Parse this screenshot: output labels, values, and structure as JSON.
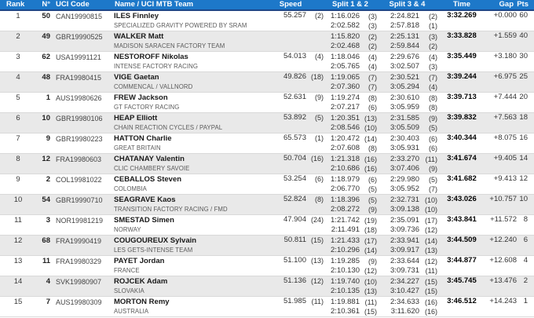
{
  "colors": {
    "header_bg": "#1d78c9",
    "header_border": "#1e4687",
    "header_text": "#ffffff",
    "row_alt_bg": "#e9e9e9",
    "row_border": "#d9d9d9",
    "text": "#333333"
  },
  "table": {
    "headers": {
      "rank": "Rank",
      "number": "N°",
      "uci_code": "UCI Code",
      "name_team": "Name / UCI MTB Team",
      "speed": "Speed",
      "split12": "Split 1 & 2",
      "split34": "Split 3 & 4",
      "time": "Time",
      "gap": "Gap",
      "pts": "Pts"
    },
    "rows": [
      {
        "rank": "1",
        "number": "50",
        "uci": "CAN19990815",
        "name": "ILES Finnley",
        "team": "SPECIALIZED GRAVITY POWERED BY SRAM",
        "speed": "55.257",
        "speed_rank": "(2)",
        "split1": "1:16.026",
        "split1_rank": "(3)",
        "split2": "2:02.582",
        "split2_rank": "(3)",
        "split3": "2:24.821",
        "split3_rank": "(2)",
        "split4": "2:57.818",
        "split4_rank": "(1)",
        "time": "3:32.269",
        "gap": "+0.000",
        "pts": "60"
      },
      {
        "rank": "2",
        "number": "49",
        "uci": "GBR19990525",
        "name": "WALKER Matt",
        "team": "MADISON SARACEN FACTORY TEAM",
        "speed": "",
        "speed_rank": "",
        "split1": "1:15.820",
        "split1_rank": "(2)",
        "split2": "2:02.468",
        "split2_rank": "(2)",
        "split3": "2:25.131",
        "split3_rank": "(3)",
        "split4": "2:59.844",
        "split4_rank": "(2)",
        "time": "3:33.828",
        "gap": "+1.559",
        "pts": "40"
      },
      {
        "rank": "3",
        "number": "62",
        "uci": "USA19991121",
        "name": "NESTOROFF Nikolas",
        "team": "INTENSE FACTORY RACING",
        "speed": "54.013",
        "speed_rank": "(4)",
        "split1": "1:18.046",
        "split1_rank": "(4)",
        "split2": "2:05.765",
        "split2_rank": "(4)",
        "split3": "2:29.676",
        "split3_rank": "(4)",
        "split4": "3:02.507",
        "split4_rank": "(3)",
        "time": "3:35.449",
        "gap": "+3.180",
        "pts": "30"
      },
      {
        "rank": "4",
        "number": "48",
        "uci": "FRA19980415",
        "name": "VIGE Gaetan",
        "team": "COMMENCAL / VALLNORD",
        "speed": "49.826",
        "speed_rank": "(18)",
        "split1": "1:19.065",
        "split1_rank": "(7)",
        "split2": "2:07.360",
        "split2_rank": "(7)",
        "split3": "2:30.521",
        "split3_rank": "(7)",
        "split4": "3:05.294",
        "split4_rank": "(4)",
        "time": "3:39.244",
        "gap": "+6.975",
        "pts": "25"
      },
      {
        "rank": "5",
        "number": "1",
        "uci": "AUS19980626",
        "name": "FREW Jackson",
        "team": "GT FACTORY RACING",
        "speed": "52.631",
        "speed_rank": "(9)",
        "split1": "1:19.274",
        "split1_rank": "(8)",
        "split2": "2:07.217",
        "split2_rank": "(6)",
        "split3": "2:30.610",
        "split3_rank": "(8)",
        "split4": "3:05.959",
        "split4_rank": "(8)",
        "time": "3:39.713",
        "gap": "+7.444",
        "pts": "20"
      },
      {
        "rank": "6",
        "number": "10",
        "uci": "GBR19980106",
        "name": "HEAP Elliott",
        "team": "CHAIN REACTION CYCLES / PAYPAL",
        "speed": "53.892",
        "speed_rank": "(5)",
        "split1": "1:20.351",
        "split1_rank": "(13)",
        "split2": "2:08.546",
        "split2_rank": "(10)",
        "split3": "2:31.585",
        "split3_rank": "(9)",
        "split4": "3:05.509",
        "split4_rank": "(5)",
        "time": "3:39.832",
        "gap": "+7.563",
        "pts": "18"
      },
      {
        "rank": "7",
        "number": "9",
        "uci": "GBR19980223",
        "name": "HATTON Charlie",
        "team": "GREAT BRITAIN",
        "speed": "65.573",
        "speed_rank": "(1)",
        "split1": "1:20.472",
        "split1_rank": "(14)",
        "split2": "2:07.608",
        "split2_rank": "(8)",
        "split3": "2:30.403",
        "split3_rank": "(6)",
        "split4": "3:05.931",
        "split4_rank": "(6)",
        "time": "3:40.344",
        "gap": "+8.075",
        "pts": "16"
      },
      {
        "rank": "8",
        "number": "12",
        "uci": "FRA19980603",
        "name": "CHATANAY Valentin",
        "team": "CLIC CHAMBERY SAVOIE",
        "speed": "50.704",
        "speed_rank": "(16)",
        "split1": "1:21.318",
        "split1_rank": "(16)",
        "split2": "2:10.686",
        "split2_rank": "(16)",
        "split3": "2:33.270",
        "split3_rank": "(11)",
        "split4": "3:07.406",
        "split4_rank": "(9)",
        "time": "3:41.674",
        "gap": "+9.405",
        "pts": "14"
      },
      {
        "rank": "9",
        "number": "2",
        "uci": "COL19981022",
        "name": "CEBALLOS Steven",
        "team": "COLOMBIA",
        "speed": "53.254",
        "speed_rank": "(6)",
        "split1": "1:18.979",
        "split1_rank": "(6)",
        "split2": "2:06.770",
        "split2_rank": "(5)",
        "split3": "2:29.980",
        "split3_rank": "(5)",
        "split4": "3:05.952",
        "split4_rank": "(7)",
        "time": "3:41.682",
        "gap": "+9.413",
        "pts": "12"
      },
      {
        "rank": "10",
        "number": "54",
        "uci": "GBR19990710",
        "name": "SEAGRAVE Kaos",
        "team": "TRANSITION FACTORY RACING / FMD",
        "speed": "52.824",
        "speed_rank": "(8)",
        "split1": "1:18.396",
        "split1_rank": "(5)",
        "split2": "2:08.272",
        "split2_rank": "(9)",
        "split3": "2:32.731",
        "split3_rank": "(10)",
        "split4": "3:09.138",
        "split4_rank": "(10)",
        "time": "3:43.026",
        "gap": "+10.757",
        "pts": "10"
      },
      {
        "rank": "11",
        "number": "3",
        "uci": "NOR19981219",
        "name": "SMESTAD Simen",
        "team": "NORWAY",
        "speed": "47.904",
        "speed_rank": "(24)",
        "split1": "1:21.742",
        "split1_rank": "(19)",
        "split2": "2:11.491",
        "split2_rank": "(18)",
        "split3": "2:35.091",
        "split3_rank": "(17)",
        "split4": "3:09.736",
        "split4_rank": "(12)",
        "time": "3:43.841",
        "gap": "+11.572",
        "pts": "8"
      },
      {
        "rank": "12",
        "number": "68",
        "uci": "FRA19990419",
        "name": "COUGOUREUX Sylvain",
        "team": "LES GETS-INTENSE TEAM",
        "speed": "50.811",
        "speed_rank": "(15)",
        "split1": "1:21.433",
        "split1_rank": "(17)",
        "split2": "2:10.296",
        "split2_rank": "(14)",
        "split3": "2:33.941",
        "split3_rank": "(14)",
        "split4": "3:09.917",
        "split4_rank": "(13)",
        "time": "3:44.509",
        "gap": "+12.240",
        "pts": "6"
      },
      {
        "rank": "13",
        "number": "11",
        "uci": "FRA19980329",
        "name": "PAYET Jordan",
        "team": "FRANCE",
        "speed": "51.100",
        "speed_rank": "(13)",
        "split1": "1:19.285",
        "split1_rank": "(9)",
        "split2": "2:10.130",
        "split2_rank": "(12)",
        "split3": "2:33.644",
        "split3_rank": "(12)",
        "split4": "3:09.731",
        "split4_rank": "(11)",
        "time": "3:44.877",
        "gap": "+12.608",
        "pts": "4"
      },
      {
        "rank": "14",
        "number": "4",
        "uci": "SVK19980907",
        "name": "ROJCEK Adam",
        "team": "SLOVAKIA",
        "speed": "51.136",
        "speed_rank": "(12)",
        "split1": "1:19.740",
        "split1_rank": "(10)",
        "split2": "2:10.135",
        "split2_rank": "(13)",
        "split3": "2:34.227",
        "split3_rank": "(15)",
        "split4": "3:10.427",
        "split4_rank": "(15)",
        "time": "3:45.745",
        "gap": "+13.476",
        "pts": "2"
      },
      {
        "rank": "15",
        "number": "7",
        "uci": "AUS19980309",
        "name": "MORTON Remy",
        "team": "AUSTRALIA",
        "speed": "51.985",
        "speed_rank": "(11)",
        "split1": "1:19.881",
        "split1_rank": "(11)",
        "split2": "2:10.361",
        "split2_rank": "(15)",
        "split3": "2:34.633",
        "split3_rank": "(16)",
        "split4": "3:11.620",
        "split4_rank": "(16)",
        "time": "3:46.512",
        "gap": "+14.243",
        "pts": "1"
      }
    ]
  }
}
